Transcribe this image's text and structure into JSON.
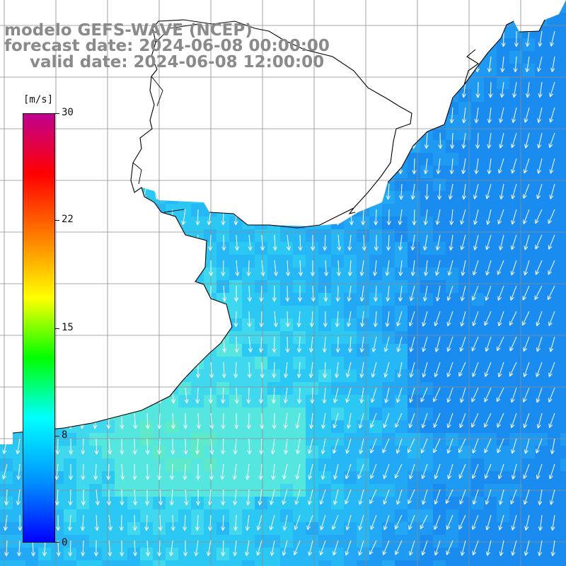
{
  "header": {
    "model_line": "modelo GEFS-WAVE (NCEP)",
    "forecast_line": "forecast date: 2024-06-08 00:00:00",
    "valid_line": "valid date: 2024-06-08 12:00:00"
  },
  "colorbar": {
    "unit": "[m/s]",
    "ticks": [
      "30",
      "22",
      "15",
      "8",
      "0"
    ],
    "tick_values": [
      30,
      22,
      15,
      8,
      0
    ],
    "range": [
      0,
      30
    ],
    "stops": [
      "#0000ff",
      "#0090ff",
      "#00ffff",
      "#00ff00",
      "#ffff00",
      "#ff8000",
      "#ff0000",
      "#c00090"
    ]
  },
  "map": {
    "field": "wind speed with direction arrows",
    "arrow_color": "#ffffff",
    "land_color": "#ffffff",
    "coast_color": "#000000",
    "grid_color": "#8c8c8c"
  }
}
